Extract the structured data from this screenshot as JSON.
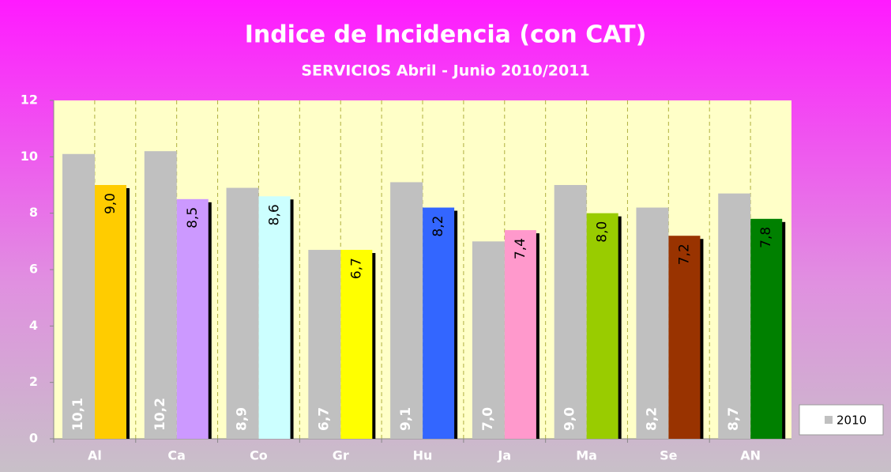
{
  "chart_data": {
    "type": "bar",
    "title": "Indice de Incidencia (con CAT)",
    "subtitle": "SERVICIOS Abril - Junio 2010/2011",
    "categories": [
      "Al",
      "Ca",
      "Co",
      "Gr",
      "Hu",
      "Ja",
      "Ma",
      "Se",
      "AN"
    ],
    "series": [
      {
        "name": "2010",
        "color": "#c0c0c0",
        "values": [
          10.1,
          10.2,
          8.9,
          6.7,
          9.1,
          7.0,
          9.0,
          8.2,
          8.7
        ],
        "value_labels": [
          "10,1",
          "10,2",
          "8,9",
          "6,7",
          "9,1",
          "7,0",
          "9,0",
          "8,2",
          "8,7"
        ]
      },
      {
        "colors": [
          "#ffcc00",
          "#cc99ff",
          "#ccffff",
          "#ffff00",
          "#3366ff",
          "#ff99cc",
          "#99cc00",
          "#993300",
          "#008000"
        ],
        "values": [
          9.0,
          8.5,
          8.6,
          6.7,
          8.2,
          7.4,
          8.0,
          7.2,
          7.8
        ],
        "value_labels": [
          "9,0",
          "8,5",
          "8,6",
          "6,7",
          "8,2",
          "7,4",
          "8,0",
          "7,2",
          "7,8"
        ]
      }
    ],
    "ylim": [
      0,
      12
    ],
    "yticks": [
      0,
      2,
      4,
      6,
      8,
      10,
      12
    ],
    "legend": "right"
  }
}
